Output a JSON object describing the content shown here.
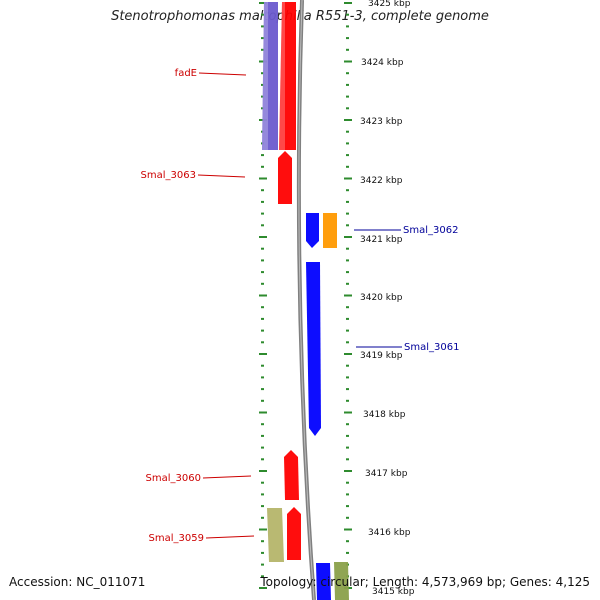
{
  "title": "Stenotrophomonas maltophilia R551-3, complete genome",
  "footer": {
    "accession": "Accession: NC_011071",
    "summary": "Topology: circular; Length: 4,573,969 bp; Genes: 4,125"
  },
  "colors": {
    "background": "#ffffff",
    "backbone": "#808080",
    "tick": "#2e8b2e",
    "left_label": "#cc0000",
    "right_label": "#000099"
  },
  "scale": {
    "unit": "kbp",
    "labels": [
      "3425 kbp",
      "3424 kbp",
      "3423 kbp",
      "3422 kbp",
      "3421 kbp",
      "3420 kbp",
      "3419 kbp",
      "3418 kbp",
      "3417 kbp",
      "3416 kbp",
      "3415 kbp"
    ]
  },
  "genes": [
    {
      "name": "fadE",
      "side": "left",
      "track": "blue-purple",
      "color": "#6a5acd"
    },
    {
      "name": "",
      "side": "left",
      "track": "red",
      "color": "#ff0000"
    },
    {
      "name": "Smal_3063",
      "side": "left",
      "track": "red",
      "color": "#ff0000"
    },
    {
      "name": "Smal_3062",
      "side": "right",
      "track": "blue",
      "color": "#0000ff"
    },
    {
      "name": "",
      "side": "right",
      "track": "orange",
      "color": "#ff9900"
    },
    {
      "name": "Smal_3061",
      "side": "right",
      "track": "blue",
      "color": "#0000ff"
    },
    {
      "name": "Smal_3060",
      "side": "left",
      "track": "red",
      "color": "#ff0000"
    },
    {
      "name": "Smal_3059",
      "side": "left",
      "track": "red",
      "color": "#ff0000"
    },
    {
      "name": "",
      "side": "left",
      "track": "olive",
      "color": "#b5b56a"
    },
    {
      "name": "",
      "side": "right",
      "track": "blue",
      "color": "#0000ff"
    },
    {
      "name": "",
      "side": "right",
      "track": "olive-green",
      "color": "#8aa04a"
    }
  ]
}
